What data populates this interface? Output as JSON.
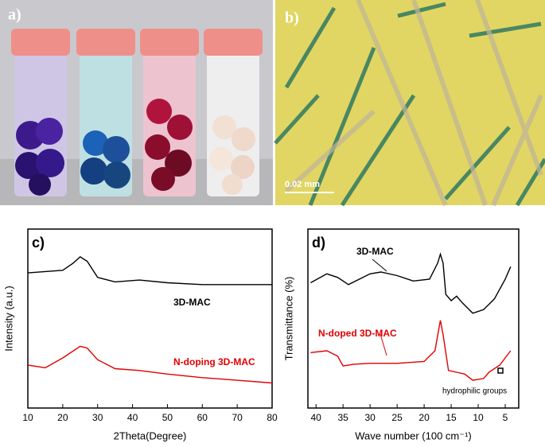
{
  "photos": {
    "a_label": "a)",
    "b_label": "b)",
    "scale_bar": "0.02 mm"
  },
  "chart_data": [
    {
      "type": "line",
      "panel": "c)",
      "xlabel": "2Theta(Degree)",
      "ylabel": "Intensity (a.u.)",
      "xlim": [
        10,
        80
      ],
      "xticks": [
        10,
        20,
        30,
        40,
        50,
        60,
        70,
        80
      ],
      "ylim": [
        0,
        100
      ],
      "series": [
        {
          "name": "3D-MAC",
          "color": "#000000",
          "x": [
            10,
            20,
            23,
            25,
            27,
            30,
            35,
            42,
            50,
            60,
            70,
            80
          ],
          "values": [
            75.5,
            77,
            81,
            84.5,
            82,
            73,
            70.5,
            71.5,
            70,
            69,
            69,
            69
          ]
        },
        {
          "name": "N-doping 3D-MAC",
          "color": "#e00000",
          "x": [
            10,
            15,
            20,
            25,
            27,
            30,
            35,
            42,
            50,
            60,
            70,
            80
          ],
          "values": [
            24,
            22.5,
            28,
            34.5,
            33.5,
            27,
            22,
            21,
            19,
            17,
            15.5,
            14
          ]
        }
      ]
    },
    {
      "type": "line",
      "panel": "d)",
      "xlabel": "Wave number (100 cm⁻¹)",
      "ylabel": "Transmittance (%)",
      "xlim": [
        41.5,
        2.5
      ],
      "xticks": [
        40,
        35,
        30,
        25,
        20,
        15,
        10,
        5
      ],
      "ylim": [
        0,
        100
      ],
      "annotation": "hydrophilic groups",
      "series": [
        {
          "name": "3D-MAC",
          "color": "#000000",
          "x": [
            41,
            38,
            36,
            34,
            32,
            30,
            28,
            25,
            22,
            19,
            17.5,
            17,
            16.5,
            16,
            15,
            14,
            13,
            11,
            9,
            7,
            5,
            4
          ],
          "values": [
            70,
            75,
            73,
            69,
            72,
            75,
            76,
            74,
            71,
            72,
            81,
            86,
            81,
            63.5,
            60,
            62.5,
            59,
            53,
            55,
            61,
            72,
            79
          ]
        },
        {
          "name": "N-doped 3D-MAC",
          "color": "#e00000",
          "x": [
            41,
            38,
            36,
            35,
            33,
            30,
            25,
            20,
            18,
            17,
            16.5,
            15.5,
            14,
            12.5,
            11,
            9,
            8,
            6,
            5,
            4
          ],
          "values": [
            31,
            32,
            29,
            23.5,
            24.5,
            25,
            25,
            26,
            32,
            49,
            41,
            21,
            20,
            19,
            15.5,
            16.5,
            20,
            24,
            28,
            32
          ]
        }
      ]
    }
  ]
}
